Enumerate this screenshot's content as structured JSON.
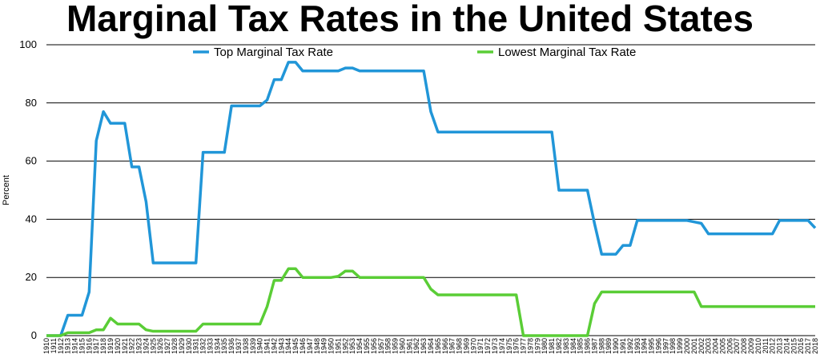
{
  "chart_data": {
    "type": "line",
    "title": "Marginal Tax Rates in the United States",
    "ylabel": "Percent",
    "xlabel": "",
    "ylim": [
      0,
      100
    ],
    "yticks": [
      "0",
      "20",
      "40",
      "60",
      "80",
      "100"
    ],
    "grid": "horizontal",
    "legend_position": "top",
    "x_start": 1910,
    "x_end": 2018,
    "series": [
      {
        "name": "Top Marginal Tax Rate",
        "color": "#2196d8",
        "points": [
          [
            1910,
            0
          ],
          [
            1912,
            0
          ],
          [
            1913,
            7
          ],
          [
            1915,
            7
          ],
          [
            1916,
            15
          ],
          [
            1917,
            67
          ],
          [
            1918,
            77
          ],
          [
            1919,
            73
          ],
          [
            1921,
            73
          ],
          [
            1922,
            58
          ],
          [
            1923,
            58
          ],
          [
            1924,
            46
          ],
          [
            1925,
            25
          ],
          [
            1931,
            25
          ],
          [
            1932,
            63
          ],
          [
            1935,
            63
          ],
          [
            1936,
            79
          ],
          [
            1940,
            79
          ],
          [
            1941,
            81
          ],
          [
            1942,
            88
          ],
          [
            1943,
            88
          ],
          [
            1944,
            94
          ],
          [
            1945,
            94
          ],
          [
            1946,
            91
          ],
          [
            1951,
            91
          ],
          [
            1952,
            92
          ],
          [
            1953,
            92
          ],
          [
            1954,
            91
          ],
          [
            1963,
            91
          ],
          [
            1964,
            77
          ],
          [
            1965,
            70
          ],
          [
            1981,
            70
          ],
          [
            1982,
            50
          ],
          [
            1986,
            50
          ],
          [
            1987,
            38.5
          ],
          [
            1988,
            28
          ],
          [
            1990,
            28
          ],
          [
            1991,
            31
          ],
          [
            1992,
            31
          ],
          [
            1993,
            39.6
          ],
          [
            2000,
            39.6
          ],
          [
            2001,
            39.1
          ],
          [
            2002,
            38.6
          ],
          [
            2003,
            35
          ],
          [
            2012,
            35
          ],
          [
            2013,
            39.6
          ],
          [
            2017,
            39.6
          ],
          [
            2018,
            37
          ]
        ]
      },
      {
        "name": "Lowest Marginal Tax Rate",
        "color": "#5acd36",
        "points": [
          [
            1910,
            0
          ],
          [
            1912,
            0
          ],
          [
            1913,
            1
          ],
          [
            1916,
            1
          ],
          [
            1917,
            2
          ],
          [
            1918,
            2
          ],
          [
            1919,
            6
          ],
          [
            1920,
            4
          ],
          [
            1923,
            4
          ],
          [
            1924,
            2
          ],
          [
            1925,
            1.5
          ],
          [
            1931,
            1.5
          ],
          [
            1932,
            4
          ],
          [
            1940,
            4
          ],
          [
            1941,
            10
          ],
          [
            1942,
            19
          ],
          [
            1943,
            19
          ],
          [
            1944,
            23
          ],
          [
            1945,
            23
          ],
          [
            1946,
            20
          ],
          [
            1950,
            20
          ],
          [
            1951,
            20.4
          ],
          [
            1952,
            22.2
          ],
          [
            1953,
            22.2
          ],
          [
            1954,
            20
          ],
          [
            1963,
            20
          ],
          [
            1964,
            16
          ],
          [
            1965,
            14
          ],
          [
            1976,
            14
          ],
          [
            1977,
            0
          ],
          [
            1986,
            0
          ],
          [
            1987,
            11
          ],
          [
            1988,
            15
          ],
          [
            2000,
            15
          ],
          [
            2001,
            15
          ],
          [
            2002,
            10
          ],
          [
            2018,
            10
          ]
        ]
      }
    ]
  }
}
